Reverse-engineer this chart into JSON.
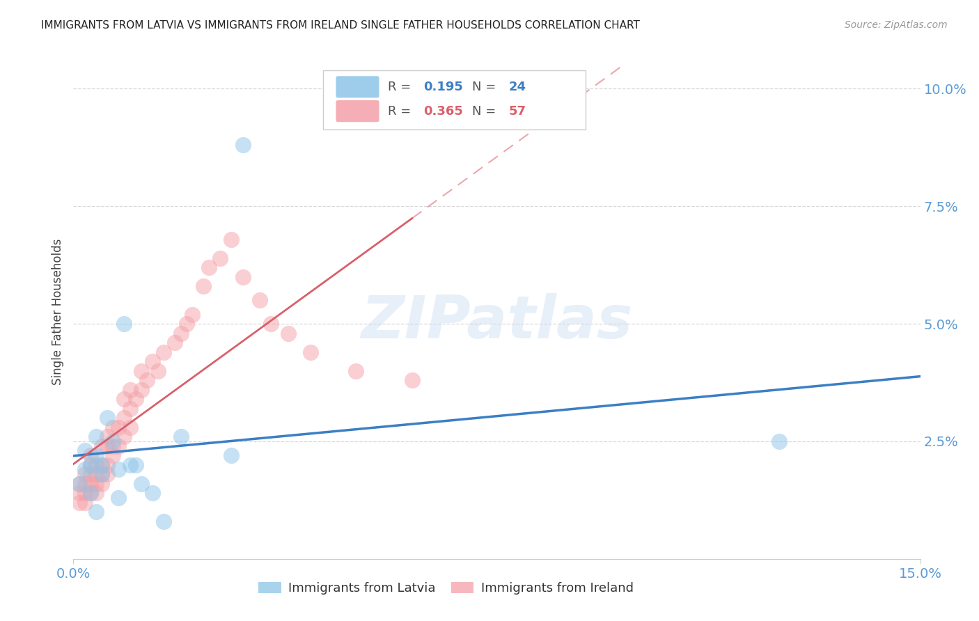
{
  "title": "IMMIGRANTS FROM LATVIA VS IMMIGRANTS FROM IRELAND SINGLE FATHER HOUSEHOLDS CORRELATION CHART",
  "source": "Source: ZipAtlas.com",
  "ylabel_label": "Single Father Households",
  "xmin": 0.0,
  "xmax": 0.15,
  "ymin": 0.0,
  "ymax": 0.105,
  "latvia_R": "0.195",
  "latvia_N": "24",
  "ireland_R": "0.365",
  "ireland_N": "57",
  "legend_label_latvia": "Immigrants from Latvia",
  "legend_label_ireland": "Immigrants from Ireland",
  "latvia_color": "#8dc5e8",
  "ireland_color": "#f4a0a8",
  "trendline_latvia_color": "#3b7fc4",
  "trendline_ireland_color": "#d95f6a",
  "watermark": "ZIPatlas",
  "background_color": "#ffffff",
  "grid_color": "#d8d8d8",
  "axis_tick_color": "#5b9bd5",
  "title_color": "#222222",
  "source_color": "#999999",
  "latvia_x": [
    0.001,
    0.002,
    0.002,
    0.003,
    0.003,
    0.004,
    0.004,
    0.004,
    0.005,
    0.005,
    0.006,
    0.007,
    0.008,
    0.008,
    0.009,
    0.01,
    0.011,
    0.012,
    0.014,
    0.016,
    0.019,
    0.028,
    0.03,
    0.125
  ],
  "latvia_y": [
    0.016,
    0.019,
    0.023,
    0.02,
    0.014,
    0.026,
    0.022,
    0.01,
    0.02,
    0.018,
    0.03,
    0.025,
    0.013,
    0.019,
    0.05,
    0.02,
    0.02,
    0.016,
    0.014,
    0.008,
    0.026,
    0.022,
    0.088,
    0.025
  ],
  "ireland_x": [
    0.001,
    0.001,
    0.001,
    0.002,
    0.002,
    0.002,
    0.002,
    0.003,
    0.003,
    0.003,
    0.003,
    0.003,
    0.004,
    0.004,
    0.004,
    0.004,
    0.005,
    0.005,
    0.005,
    0.005,
    0.006,
    0.006,
    0.006,
    0.006,
    0.007,
    0.007,
    0.007,
    0.008,
    0.008,
    0.009,
    0.009,
    0.009,
    0.01,
    0.01,
    0.01,
    0.011,
    0.012,
    0.012,
    0.013,
    0.014,
    0.015,
    0.016,
    0.018,
    0.019,
    0.02,
    0.021,
    0.023,
    0.024,
    0.026,
    0.028,
    0.03,
    0.033,
    0.035,
    0.038,
    0.042,
    0.05,
    0.06
  ],
  "ireland_y": [
    0.012,
    0.014,
    0.016,
    0.012,
    0.014,
    0.016,
    0.018,
    0.014,
    0.016,
    0.018,
    0.02,
    0.022,
    0.014,
    0.016,
    0.018,
    0.02,
    0.016,
    0.018,
    0.02,
    0.024,
    0.018,
    0.02,
    0.024,
    0.026,
    0.022,
    0.024,
    0.028,
    0.024,
    0.028,
    0.026,
    0.03,
    0.034,
    0.028,
    0.032,
    0.036,
    0.034,
    0.036,
    0.04,
    0.038,
    0.042,
    0.04,
    0.044,
    0.046,
    0.048,
    0.05,
    0.052,
    0.058,
    0.062,
    0.064,
    0.068,
    0.06,
    0.055,
    0.05,
    0.048,
    0.044,
    0.04,
    0.038
  ]
}
